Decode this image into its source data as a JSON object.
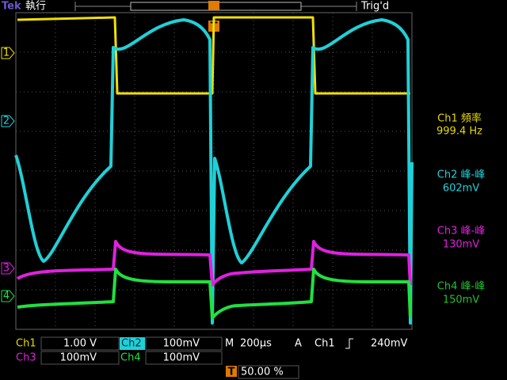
{
  "header": {
    "brand": "Tek",
    "status": "執行",
    "trigger_state": "Trig'd",
    "trigger_marker": "T"
  },
  "channel_markers": [
    "1",
    "2",
    "3",
    "4"
  ],
  "measurements": [
    {
      "label": "Ch1 頻率",
      "value": "999.4 Hz"
    },
    {
      "label": "Ch2 峰-峰",
      "value": "602mV"
    },
    {
      "label": "Ch3 峰-峰",
      "value": "130mV"
    },
    {
      "label": "Ch4 峰-峰",
      "value": "150mV"
    }
  ],
  "footer": {
    "channels": [
      {
        "name": "Ch1",
        "scale": "1.00 V"
      },
      {
        "name": "Ch2",
        "scale": "100mV"
      },
      {
        "name": "Ch3",
        "scale": "100mV"
      },
      {
        "name": "Ch4",
        "scale": "100mV"
      }
    ],
    "timebase_label": "M",
    "timebase": "200µs",
    "trigger_mode": "A",
    "trigger_source": "Ch1",
    "trigger_level": "240mV",
    "trigger_marker": "T",
    "trigger_position": "50.00 %"
  }
}
